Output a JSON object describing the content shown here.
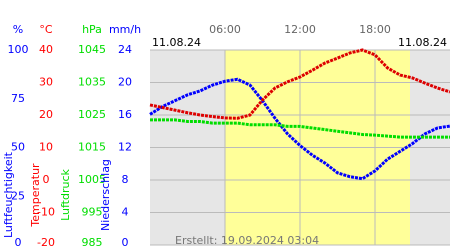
{
  "chart_data": {
    "type": "line",
    "date_left": "11.08.24",
    "date_right": "11.08.24",
    "created": "Erstellt: 19.09.2024 03:04",
    "xlim": [
      0,
      24
    ],
    "xticks": [
      {
        "value": 6,
        "label": "06:00"
      },
      {
        "value": 12,
        "label": "12:00"
      },
      {
        "value": 18,
        "label": "18:00"
      }
    ],
    "daylight": [
      6,
      20.8
    ],
    "grid": true,
    "axes": [
      {
        "unit": "%",
        "label": "Luftfeuchtigkeit",
        "color": "#0000ff",
        "lim": [
          0,
          100
        ],
        "ticks": [
          0,
          25,
          50,
          75,
          100
        ]
      },
      {
        "unit": "°C",
        "label": "Temperatur",
        "color": "#ff0000",
        "lim": [
          -20,
          40
        ],
        "ticks": [
          -20,
          -10,
          0,
          10,
          20,
          30,
          40
        ]
      },
      {
        "unit": "hPa",
        "label": "Luftdruck",
        "color": "#00dd00",
        "lim": [
          985,
          1045
        ],
        "ticks": [
          985,
          995,
          1005,
          1015,
          1025,
          1035,
          1045
        ]
      },
      {
        "unit": "mm/h",
        "label": "Niederschlag",
        "color": "#0000ff",
        "lim": [
          0,
          24
        ],
        "ticks": [
          0,
          4,
          8,
          12,
          16,
          20,
          24
        ]
      }
    ],
    "x": [
      0,
      1,
      2,
      3,
      4,
      5,
      6,
      7,
      8,
      9,
      10,
      11,
      12,
      13,
      14,
      15,
      16,
      17,
      18,
      19,
      20,
      21,
      22,
      23,
      24
    ],
    "series": [
      {
        "name": "Luftfeuchtigkeit",
        "color": "#0000ff",
        "axis": 0,
        "values": [
          67,
          71,
          74,
          77,
          79,
          82,
          84,
          85,
          82,
          74,
          65,
          57,
          51,
          46,
          42,
          37,
          35,
          34,
          38,
          44,
          48,
          52,
          57,
          60,
          61
        ]
      },
      {
        "name": "Temperatur",
        "color": "#dd0000",
        "axis": 1,
        "values": [
          23.1,
          22.3,
          21.5,
          20.7,
          20,
          19.5,
          19.1,
          19,
          20,
          24.6,
          28.3,
          30.2,
          31.7,
          33.8,
          36,
          37.5,
          39.1,
          40,
          38.5,
          34.5,
          32.3,
          31.4,
          29.8,
          28.3,
          27.1
        ]
      },
      {
        "name": "Luftdruck",
        "color": "#00dd00",
        "axis": 2,
        "values": [
          1023.5,
          1023.5,
          1023.5,
          1023,
          1023,
          1022.5,
          1022.5,
          1022.5,
          1022,
          1022,
          1022,
          1021.5,
          1021.5,
          1021,
          1020.5,
          1020,
          1019.5,
          1019,
          1018.8,
          1018.5,
          1018.2,
          1018.2,
          1018.2,
          1018.2,
          1018.2
        ]
      }
    ]
  }
}
